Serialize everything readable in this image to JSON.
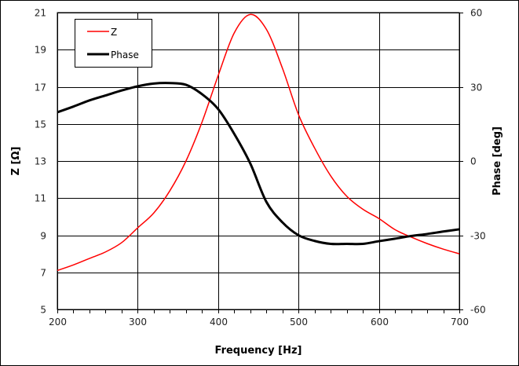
{
  "chart_data": {
    "type": "line",
    "xlabel": "Frequency [Hz]",
    "ylabel": "Z [Ω]",
    "y2label": "Phase [deg]",
    "xlim": [
      200,
      700
    ],
    "ylim": [
      5,
      21
    ],
    "y2lim": [
      -60,
      60
    ],
    "xticks": [
      200,
      300,
      400,
      500,
      600,
      700
    ],
    "yticks": [
      5,
      7,
      9,
      11,
      13,
      15,
      17,
      19,
      21
    ],
    "y2ticks": [
      -60,
      -30,
      0,
      30,
      60
    ],
    "grid": true,
    "legend": "top-left",
    "x": [
      200,
      220,
      240,
      260,
      280,
      300,
      320,
      340,
      360,
      380,
      400,
      420,
      440,
      460,
      480,
      500,
      520,
      540,
      560,
      580,
      600,
      620,
      640,
      660,
      680,
      700
    ],
    "series": [
      {
        "name": "Z",
        "axis": "left",
        "color": "#ff0000",
        "values": [
          7.1,
          7.4,
          7.75,
          8.1,
          8.6,
          9.4,
          10.2,
          11.4,
          13.0,
          15.1,
          17.6,
          19.9,
          20.9,
          20.1,
          18.0,
          15.5,
          13.7,
          12.2,
          11.1,
          10.4,
          9.9,
          9.3,
          8.9,
          8.55,
          8.25,
          8.0
        ]
      },
      {
        "name": "Phase",
        "axis": "right",
        "color": "#000000",
        "values": [
          19.7,
          22,
          24.5,
          26.5,
          28.5,
          30.2,
          31.3,
          31.5,
          30.8,
          27,
          21,
          11,
          -1,
          -16.5,
          -24.8,
          -30,
          -32.3,
          -33.5,
          -33.5,
          -33.5,
          -32.4,
          -31.4,
          -30.3,
          -29.5,
          -28.5,
          -27.6
        ]
      }
    ]
  }
}
